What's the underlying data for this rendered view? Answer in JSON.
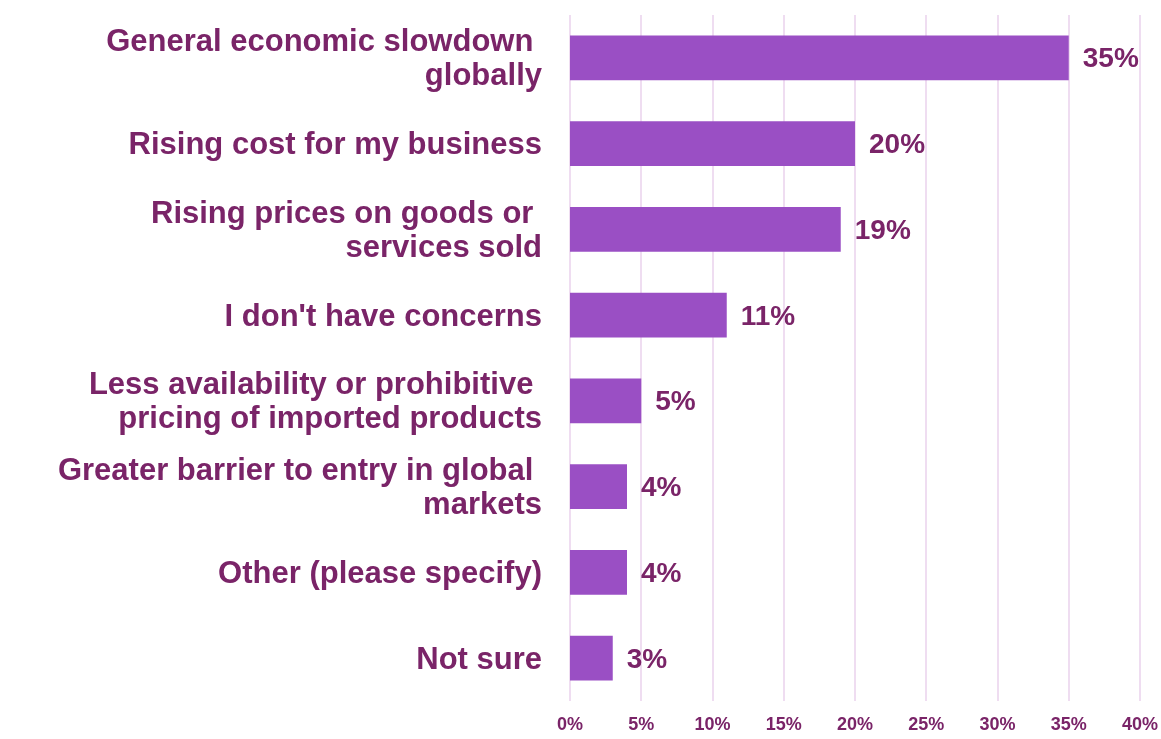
{
  "chart_data": {
    "type": "bar",
    "orientation": "horizontal",
    "categories": [
      "General economic slowdown globally",
      "Rising cost for my business",
      "Rising prices on goods or services sold",
      "I don't have concerns",
      "Less availability or prohibitive pricing of imported products",
      "Greater barrier to entry in global markets",
      "Other (please specify)",
      "Not sure"
    ],
    "values": [
      35,
      20,
      19,
      11,
      5,
      4,
      4,
      3
    ],
    "value_labels": [
      "35%",
      "20%",
      "19%",
      "11%",
      "5%",
      "4%",
      "4%",
      "3%"
    ],
    "color": "#9a4fc4",
    "xlim": [
      0,
      40
    ],
    "xticks": [
      {
        "value": 0,
        "label": "0%"
      },
      {
        "value": 5,
        "label": "5%"
      },
      {
        "value": 10,
        "label": "10%"
      },
      {
        "value": 15,
        "label": "15%"
      },
      {
        "value": 20,
        "label": "20%"
      },
      {
        "value": 25,
        "label": "25%"
      },
      {
        "value": 30,
        "label": "30%"
      },
      {
        "value": 35,
        "label": "35%"
      },
      {
        "value": 40,
        "label": "40%"
      }
    ],
    "grid": "x"
  }
}
